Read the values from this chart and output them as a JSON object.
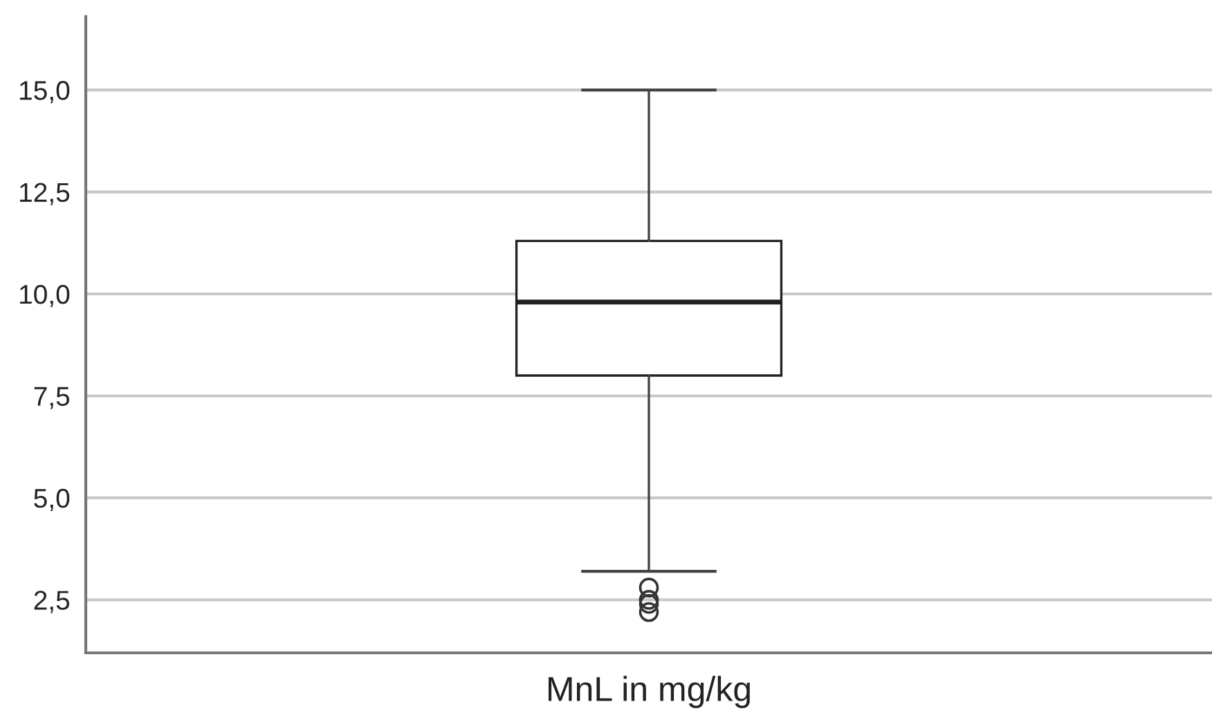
{
  "chart_data": {
    "type": "box",
    "categories": [
      "MnL in mg/kg"
    ],
    "boxes": [
      {
        "low": 3.2,
        "q1": 8.0,
        "median": 9.8,
        "q3": 11.3,
        "high": 15.0,
        "outliers": [
          2.8,
          2.5,
          2.4,
          2.2
        ]
      }
    ],
    "ylim": [
      1.2,
      16.8
    ],
    "yticks": [
      {
        "value": 2.5,
        "label": "2,5"
      },
      {
        "value": 5.0,
        "label": "5,0"
      },
      {
        "value": 7.5,
        "label": "7,5"
      },
      {
        "value": 10.0,
        "label": "10,0"
      },
      {
        "value": 12.5,
        "label": "12,5"
      },
      {
        "value": 15.0,
        "label": "15,0"
      }
    ],
    "grid": "y"
  }
}
